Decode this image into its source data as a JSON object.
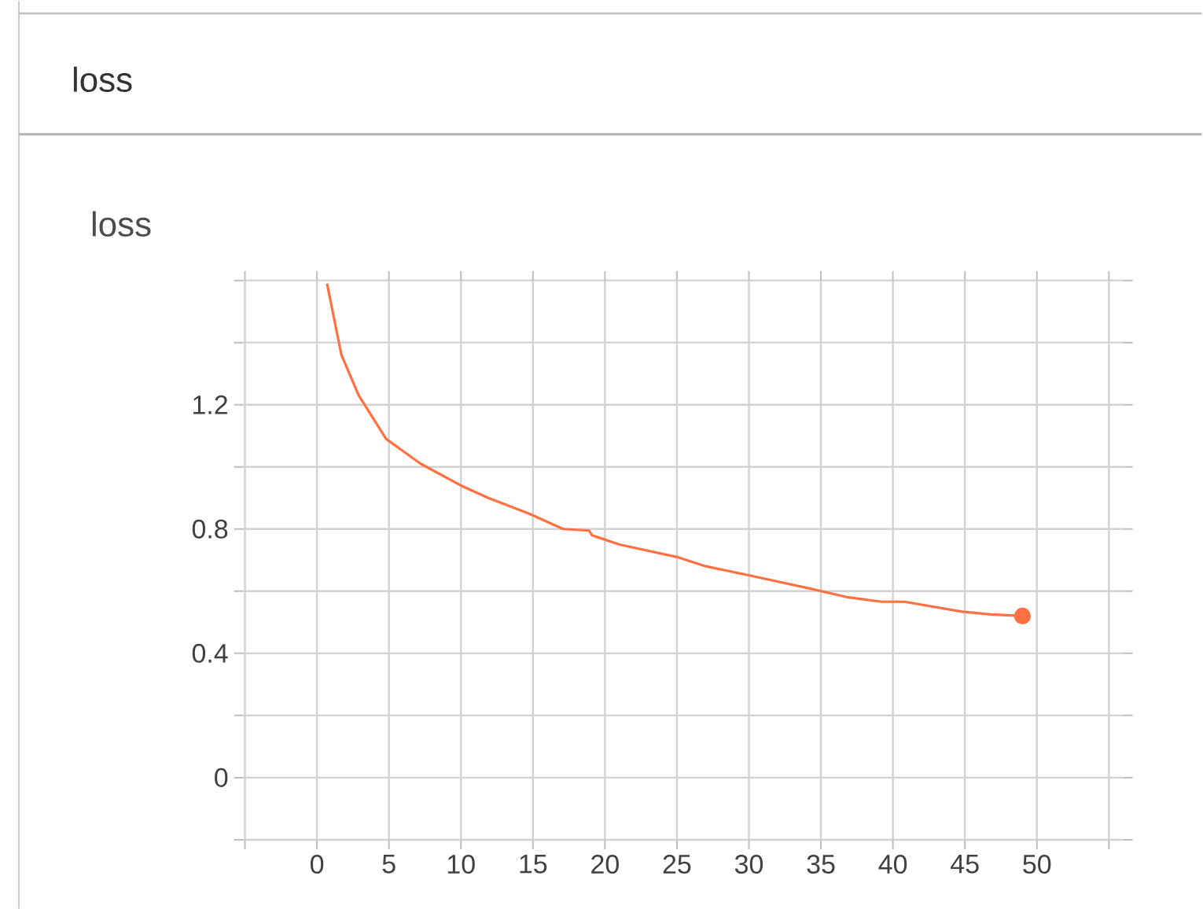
{
  "chart_data": {
    "type": "line",
    "title": "loss",
    "subtitle": "loss",
    "x": [
      0.7,
      1.7,
      2.9,
      4.8,
      7.2,
      10.0,
      11.9,
      14.7,
      17.1,
      18.9,
      19.1,
      21.0,
      25.0,
      27.0,
      30.1,
      34.1,
      36.9,
      39.2,
      40.8,
      44.8,
      46.8,
      49.0
    ],
    "series": [
      {
        "color": "#ff7043",
        "values": [
          1.59,
          1.36,
          1.23,
          1.09,
          1.01,
          0.94,
          0.9,
          0.85,
          0.8,
          0.795,
          0.78,
          0.75,
          0.71,
          0.68,
          0.65,
          0.61,
          0.58,
          0.566,
          0.566,
          0.534,
          0.525,
          0.52
        ]
      },
      {
        "type": "scatter",
        "color": "#ff7043",
        "x": [
          49.0
        ],
        "values": [
          0.52
        ]
      }
    ],
    "xlim": [
      -5.1,
      56
    ],
    "ylim": [
      -0.2,
      1.6
    ],
    "xticks": [
      {
        "value": -5,
        "label": null
      },
      0,
      5,
      10,
      15,
      20,
      25,
      30,
      35,
      40,
      45,
      50,
      {
        "value": 55,
        "label": null
      }
    ],
    "yticks": [
      {
        "value": -0.2,
        "label": null
      },
      0,
      {
        "value": 0.2,
        "label": null
      },
      0.4,
      {
        "value": 0.6,
        "label": null
      },
      0.8,
      {
        "value": 1.0,
        "label": null
      },
      1.2,
      {
        "value": 1.4,
        "label": null
      },
      {
        "value": 1.6,
        "label": null
      }
    ],
    "grid": true,
    "line_style": "solid"
  }
}
